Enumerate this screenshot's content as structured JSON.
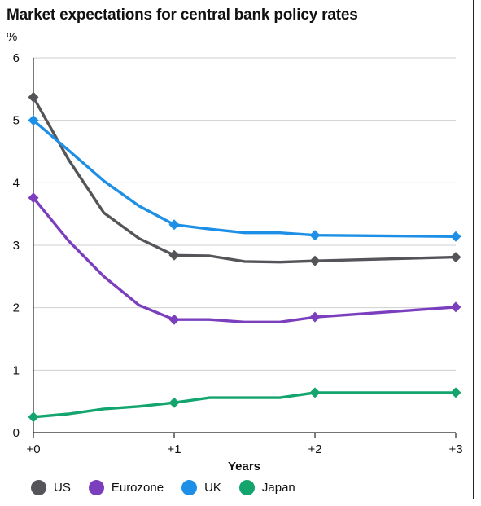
{
  "chart_data": {
    "type": "line",
    "title": "Market expectations for central bank policy rates",
    "unit": "%",
    "xlabel": "Years",
    "x_tick_labels": [
      "+0",
      "+1",
      "+2",
      "+3"
    ],
    "x_ticks": [
      0,
      1,
      2,
      3
    ],
    "xlim": [
      0,
      3
    ],
    "ylim": [
      0,
      6
    ],
    "y_ticks": [
      0,
      1,
      2,
      3,
      4,
      5,
      6
    ],
    "grid": "horizontal",
    "legend_position": "bottom",
    "x": [
      0,
      0.25,
      0.5,
      0.75,
      1,
      1.25,
      1.5,
      1.75,
      2,
      3
    ],
    "marker_x": [
      0,
      1,
      2,
      3
    ],
    "series": [
      {
        "name": "US",
        "color": "#555559",
        "values": [
          5.37,
          4.37,
          3.52,
          3.11,
          2.84,
          2.83,
          2.74,
          2.73,
          2.75,
          2.81
        ]
      },
      {
        "name": "Eurozone",
        "color": "#7b3fbe",
        "values": [
          3.76,
          3.07,
          2.5,
          2.04,
          1.81,
          1.81,
          1.77,
          1.77,
          1.85,
          2.01
        ]
      },
      {
        "name": "UK",
        "color": "#1e8fe6",
        "values": [
          5.0,
          4.52,
          4.03,
          3.63,
          3.33,
          3.26,
          3.2,
          3.2,
          3.16,
          3.14
        ]
      },
      {
        "name": "Japan",
        "color": "#14a46e",
        "values": [
          0.25,
          0.3,
          0.38,
          0.42,
          0.48,
          0.56,
          0.56,
          0.56,
          0.64,
          0.64
        ]
      }
    ]
  }
}
